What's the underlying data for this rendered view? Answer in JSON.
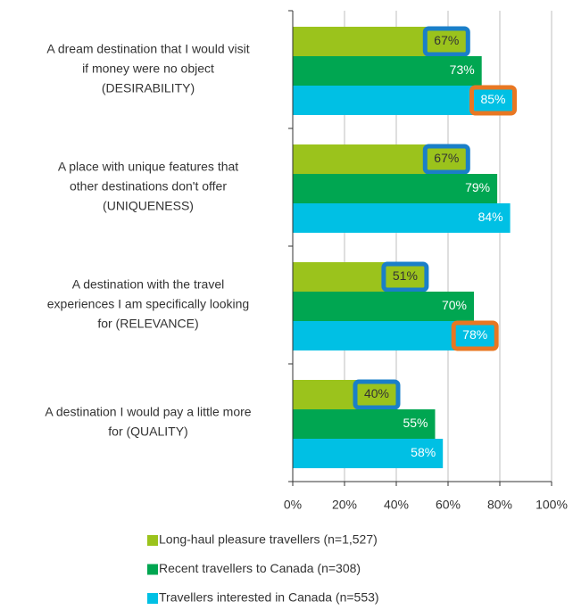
{
  "chart_data": {
    "type": "bar",
    "orientation": "horizontal",
    "categories": [
      [
        "A dream destination that I would visit",
        "if money were no object",
        "(DESIRABILITY)"
      ],
      [
        "A place with unique features that",
        "other destinations don't offer",
        "(UNIQUENESS)"
      ],
      [
        "A destination with the travel",
        "experiences I am specifically looking",
        "for (RELEVANCE)"
      ],
      [
        "A destination I would pay a little more",
        "for (QUALITY)"
      ]
    ],
    "series": [
      {
        "name": "Long-haul pleasure travellers (n=1,527)",
        "color": "#9bc31c",
        "label_color": "#333333",
        "values": [
          67,
          67,
          51,
          40
        ],
        "value_labels": [
          "67%",
          "67%",
          "51%",
          "40%"
        ],
        "box_color": "#1a7fc8",
        "boxed": [
          true,
          true,
          true,
          true
        ]
      },
      {
        "name": "Recent travellers to Canada (n=308)",
        "color": "#00a651",
        "label_color": "#ffffff",
        "values": [
          73,
          79,
          70,
          55
        ],
        "value_labels": [
          "73%",
          "79%",
          "70%",
          "55%"
        ]
      },
      {
        "name": "Travellers interested in Canada (n=553)",
        "color": "#00c0e4",
        "label_color": "#ffffff",
        "values": [
          85,
          84,
          78,
          58
        ],
        "value_labels": [
          "85%",
          "84%",
          "78%",
          "58%"
        ],
        "box_color": "#e87722",
        "boxed": [
          true,
          false,
          true,
          false
        ]
      }
    ],
    "xlim": [
      0,
      100
    ],
    "xticks": [
      {
        "value": 0,
        "label": "0%"
      },
      {
        "value": 20,
        "label": "20%"
      },
      {
        "value": 40,
        "label": "40%"
      },
      {
        "value": 60,
        "label": "60%"
      },
      {
        "value": 80,
        "label": "80%"
      },
      {
        "value": 100,
        "label": "100%"
      }
    ],
    "grid": true,
    "legend": "bottom"
  }
}
